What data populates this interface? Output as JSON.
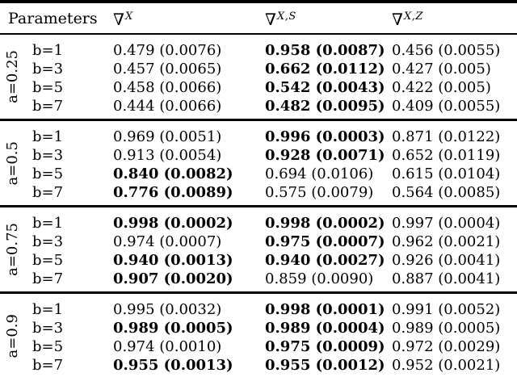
{
  "header": {
    "parameters_label": "Parameters",
    "columns": [
      {
        "symbol": "∇",
        "superscript": "X"
      },
      {
        "symbol": "∇",
        "superscript": "X,S"
      },
      {
        "symbol": "∇",
        "superscript": "X,Z"
      }
    ]
  },
  "groups": [
    {
      "a_label": "a=0.25",
      "rows": [
        {
          "b_label": "b=1",
          "cells": [
            {
              "value": "0.479",
              "se": "(0.0076)",
              "bold": false
            },
            {
              "value": "0.958",
              "se": "(0.0087)",
              "bold": true
            },
            {
              "value": "0.456",
              "se": "(0.0055)",
              "bold": false
            }
          ]
        },
        {
          "b_label": "b=3",
          "cells": [
            {
              "value": "0.457",
              "se": "(0.0065)",
              "bold": false
            },
            {
              "value": "0.662",
              "se": "(0.0112)",
              "bold": true
            },
            {
              "value": "0.427",
              "se": "(0.005)",
              "bold": false
            }
          ]
        },
        {
          "b_label": "b=5",
          "cells": [
            {
              "value": "0.458",
              "se": "(0.0066)",
              "bold": false
            },
            {
              "value": "0.542",
              "se": "(0.0043)",
              "bold": true
            },
            {
              "value": "0.422",
              "se": "(0.005)",
              "bold": false
            }
          ]
        },
        {
          "b_label": "b=7",
          "cells": [
            {
              "value": "0.444",
              "se": "(0.0066)",
              "bold": false
            },
            {
              "value": "0.482",
              "se": "(0.0095)",
              "bold": true
            },
            {
              "value": "0.409",
              "se": "(0.0055)",
              "bold": false
            }
          ]
        }
      ]
    },
    {
      "a_label": "a=0.5",
      "rows": [
        {
          "b_label": "b=1",
          "cells": [
            {
              "value": "0.969",
              "se": "(0.0051)",
              "bold": false
            },
            {
              "value": "0.996",
              "se": "(0.0003)",
              "bold": true
            },
            {
              "value": "0.871",
              "se": "(0.0122)",
              "bold": false
            }
          ]
        },
        {
          "b_label": "b=3",
          "cells": [
            {
              "value": "0.913",
              "se": "(0.0054)",
              "bold": false
            },
            {
              "value": "0.928",
              "se": "(0.0071)",
              "bold": true
            },
            {
              "value": "0.652",
              "se": "(0.0119)",
              "bold": false
            }
          ]
        },
        {
          "b_label": "b=5",
          "cells": [
            {
              "value": "0.840",
              "se": "(0.0082)",
              "bold": true
            },
            {
              "value": "0.694",
              "se": "(0.0106)",
              "bold": false
            },
            {
              "value": "0.615",
              "se": "(0.0104)",
              "bold": false
            }
          ]
        },
        {
          "b_label": "b=7",
          "cells": [
            {
              "value": "0.776",
              "se": "(0.0089)",
              "bold": true
            },
            {
              "value": "0.575",
              "se": "(0.0079)",
              "bold": false
            },
            {
              "value": "0.564",
              "se": "(0.0085)",
              "bold": false
            }
          ]
        }
      ]
    },
    {
      "a_label": "a=0.75",
      "rows": [
        {
          "b_label": "b=1",
          "cells": [
            {
              "value": "0.998",
              "se": "(0.0002)",
              "bold": true
            },
            {
              "value": "0.998",
              "se": "(0.0002)",
              "bold": true
            },
            {
              "value": "0.997",
              "se": "(0.0004)",
              "bold": false
            }
          ]
        },
        {
          "b_label": "b=3",
          "cells": [
            {
              "value": "0.974",
              "se": "(0.0007)",
              "bold": false
            },
            {
              "value": "0.975",
              "se": "(0.0007)",
              "bold": true
            },
            {
              "value": "0.962",
              "se": "(0.0021)",
              "bold": false
            }
          ]
        },
        {
          "b_label": "b=5",
          "cells": [
            {
              "value": "0.940",
              "se": "(0.0013)",
              "bold": true
            },
            {
              "value": "0.940",
              "se": "(0.0027)",
              "bold": true
            },
            {
              "value": "0.926",
              "se": "(0.0041)",
              "bold": false
            }
          ]
        },
        {
          "b_label": "b=7",
          "cells": [
            {
              "value": "0.907",
              "se": "(0.0020)",
              "bold": true
            },
            {
              "value": "0.859",
              "se": "(0.0090)",
              "bold": false
            },
            {
              "value": "0.887",
              "se": "(0.0041)",
              "bold": false
            }
          ]
        }
      ]
    },
    {
      "a_label": "a=0.9",
      "rows": [
        {
          "b_label": "b=1",
          "cells": [
            {
              "value": "0.995",
              "se": "(0.0032)",
              "bold": false
            },
            {
              "value": "0.998",
              "se": "(0.0001)",
              "bold": true
            },
            {
              "value": "0.991",
              "se": "(0.0052)",
              "bold": false
            }
          ]
        },
        {
          "b_label": "b=3",
          "cells": [
            {
              "value": "0.989",
              "se": "(0.0005)",
              "bold": true
            },
            {
              "value": "0.989",
              "se": "(0.0004)",
              "bold": true
            },
            {
              "value": "0.989",
              "se": "(0.0005)",
              "bold": false
            }
          ]
        },
        {
          "b_label": "b=5",
          "cells": [
            {
              "value": "0.974",
              "se": "(0.0010)",
              "bold": false
            },
            {
              "value": "0.975",
              "se": "(0.0009)",
              "bold": true
            },
            {
              "value": "0.972",
              "se": "(0.0029)",
              "bold": false
            }
          ]
        },
        {
          "b_label": "b=7",
          "cells": [
            {
              "value": "0.955",
              "se": "(0.0013)",
              "bold": true
            },
            {
              "value": "0.955",
              "se": "(0.0012)",
              "bold": true
            },
            {
              "value": "0.952",
              "se": "(0.0021)",
              "bold": false
            }
          ]
        }
      ]
    }
  ]
}
